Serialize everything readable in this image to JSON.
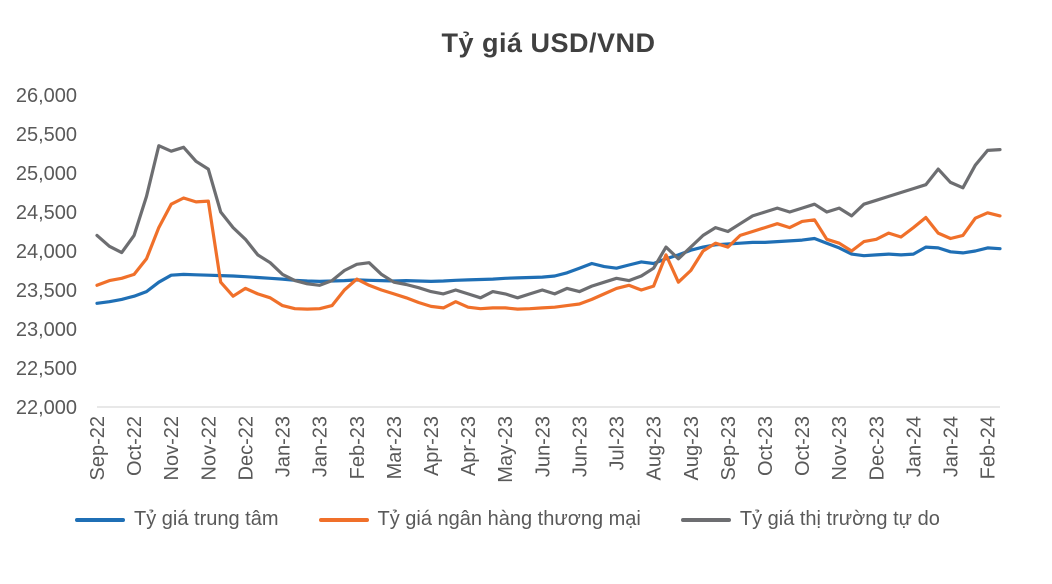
{
  "chart_data": {
    "type": "line",
    "title": "Tỷ giá USD/VND",
    "ylim": [
      22000,
      26000
    ],
    "y_ticks": [
      {
        "value": 26000,
        "label": "26,000"
      },
      {
        "value": 25500,
        "label": "25,500"
      },
      {
        "value": 25000,
        "label": "25,000"
      },
      {
        "value": 24500,
        "label": "24,500"
      },
      {
        "value": 24000,
        "label": "24,000"
      },
      {
        "value": 23500,
        "label": "23,500"
      },
      {
        "value": 23000,
        "label": "23,000"
      },
      {
        "value": 22500,
        "label": "22,500"
      },
      {
        "value": 22000,
        "label": "22,000"
      }
    ],
    "x_tick_labels": [
      "Sep-22",
      "Oct-22",
      "Nov-22",
      "Nov-22",
      "Dec-22",
      "Jan-23",
      "Jan-23",
      "Feb-23",
      "Mar-23",
      "Apr-23",
      "Apr-23",
      "May-23",
      "Jun-23",
      "Jun-23",
      "Jul-23",
      "Aug-23",
      "Aug-23",
      "Sep-23",
      "Oct-23",
      "Oct-23",
      "Nov-23",
      "Dec-23",
      "Jan-24",
      "Jan-24",
      "Feb-24"
    ],
    "x_tick_step": 3,
    "grid": "off",
    "legend_position": "bottom",
    "axis_color": "#D9D9D9",
    "text_color": "#595959",
    "title_color": "#404040",
    "series": [
      {
        "name": "Tỷ giá trung tâm",
        "color": "#1F6FB5",
        "values": [
          23330,
          23350,
          23380,
          23420,
          23480,
          23600,
          23690,
          23700,
          23695,
          23690,
          23685,
          23680,
          23670,
          23660,
          23650,
          23640,
          23625,
          23615,
          23610,
          23615,
          23620,
          23630,
          23625,
          23620,
          23615,
          23620,
          23615,
          23610,
          23615,
          23625,
          23630,
          23635,
          23640,
          23650,
          23655,
          23660,
          23665,
          23680,
          23720,
          23780,
          23840,
          23800,
          23780,
          23820,
          23860,
          23840,
          23900,
          23950,
          24010,
          24050,
          24080,
          24090,
          24100,
          24110,
          24110,
          24120,
          24130,
          24140,
          24160,
          24100,
          24040,
          23960,
          23940,
          23950,
          23960,
          23950,
          23960,
          24050,
          24040,
          23990,
          23975,
          24000,
          24040,
          24030
        ]
      },
      {
        "name": "Tỷ giá ngân hàng thương mại",
        "color": "#F0702A",
        "values": [
          23560,
          23620,
          23650,
          23700,
          23900,
          24300,
          24600,
          24680,
          24630,
          24640,
          23600,
          23420,
          23520,
          23450,
          23400,
          23300,
          23260,
          23255,
          23260,
          23300,
          23500,
          23640,
          23560,
          23500,
          23450,
          23400,
          23340,
          23290,
          23270,
          23350,
          23280,
          23260,
          23270,
          23270,
          23255,
          23260,
          23270,
          23280,
          23300,
          23320,
          23380,
          23450,
          23520,
          23560,
          23500,
          23550,
          23950,
          23600,
          23750,
          24000,
          24100,
          24050,
          24200,
          24250,
          24300,
          24350,
          24300,
          24380,
          24400,
          24150,
          24100,
          24000,
          24120,
          24150,
          24230,
          24180,
          24300,
          24430,
          24230,
          24160,
          24200,
          24420,
          24490,
          24450
        ]
      },
      {
        "name": "Tỷ giá thị trường tự do",
        "color": "#6D6E71",
        "values": [
          24200,
          24060,
          23980,
          24200,
          24700,
          25350,
          25280,
          25330,
          25150,
          25050,
          24500,
          24300,
          24150,
          23950,
          23850,
          23700,
          23620,
          23580,
          23560,
          23620,
          23750,
          23830,
          23850,
          23700,
          23600,
          23570,
          23530,
          23480,
          23450,
          23500,
          23450,
          23400,
          23480,
          23450,
          23400,
          23450,
          23500,
          23450,
          23520,
          23480,
          23550,
          23600,
          23650,
          23620,
          23680,
          23780,
          24050,
          23900,
          24050,
          24200,
          24300,
          24250,
          24350,
          24450,
          24500,
          24550,
          24500,
          24550,
          24600,
          24500,
          24550,
          24450,
          24600,
          24650,
          24700,
          24750,
          24800,
          24850,
          25050,
          24880,
          24810,
          25100,
          25290,
          25300
        ]
      }
    ]
  }
}
